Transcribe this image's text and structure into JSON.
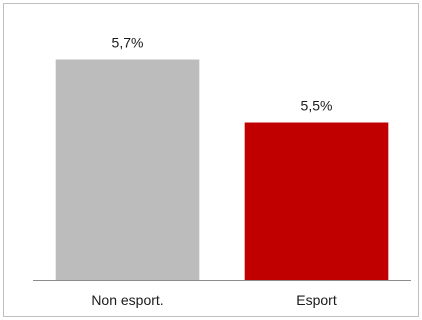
{
  "chart_data": {
    "type": "bar",
    "categories": [
      "Non esport.",
      "Esport"
    ],
    "values": [
      5.7,
      5.5
    ],
    "data_labels": [
      "5,7%",
      "5,5%"
    ],
    "colors": [
      "#bcbcbc",
      "#c00000"
    ],
    "ylim": [
      5.0,
      5.8
    ],
    "grid": false,
    "legend": "none"
  }
}
